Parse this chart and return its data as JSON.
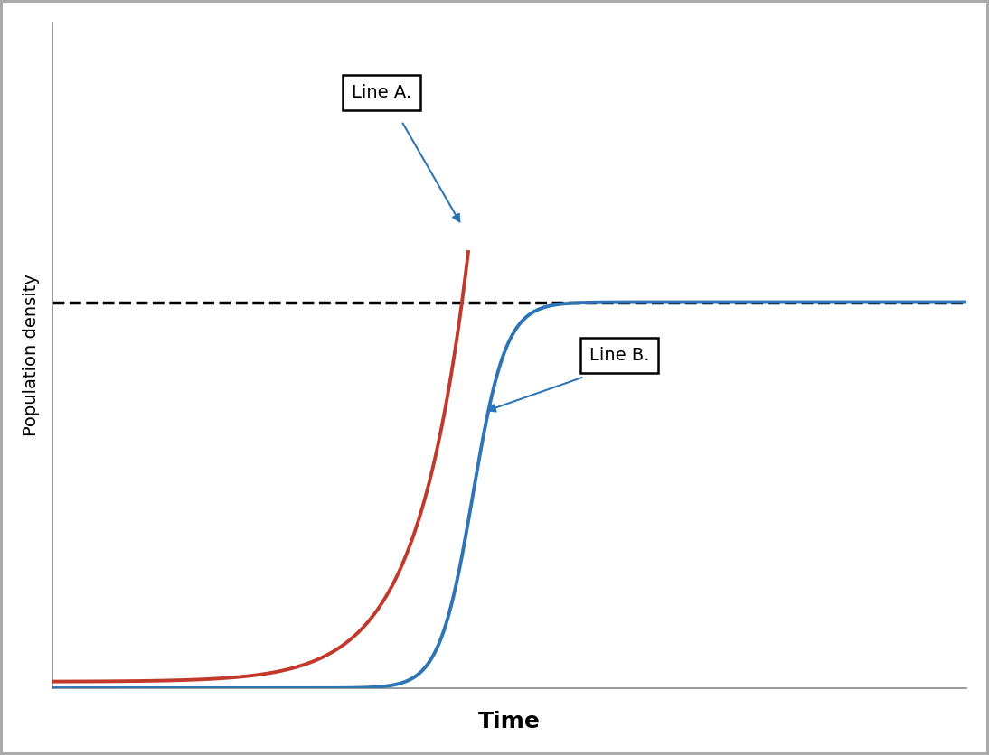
{
  "title": "",
  "xlabel": "Time",
  "ylabel": "Population density",
  "background_color": "#ffffff",
  "figure_border_color": "#aaaaaa",
  "line_a_color": "#c0392b",
  "line_b_color": "#2e75b6",
  "dashed_line_color": "#000000",
  "arrow_color": "#2e75b6",
  "xlabel_fontsize": 18,
  "ylabel_fontsize": 14,
  "carrying_capacity": 0.58,
  "label_a_text": "Line A.",
  "label_b_text": "Line B."
}
